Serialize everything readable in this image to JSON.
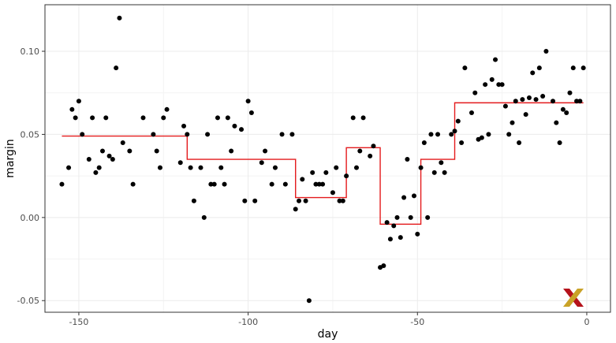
{
  "chart_data": {
    "type": "scatter",
    "xlabel": "day",
    "ylabel": "margin",
    "xlim": [
      -160,
      7
    ],
    "ylim": [
      -0.057,
      0.128
    ],
    "x_ticks": [
      -150,
      -100,
      -50,
      0
    ],
    "x_tick_labels": [
      "-150",
      "-100",
      "-50",
      "0"
    ],
    "y_ticks": [
      -0.05,
      0.0,
      0.05,
      0.1
    ],
    "y_tick_labels": [
      "-0.05",
      "0.00",
      "0.05",
      "0.10"
    ],
    "grid": true,
    "point_color": "#000000",
    "step_color": "#e41a1c",
    "points": [
      [
        -155,
        0.02
      ],
      [
        -153,
        0.03
      ],
      [
        -152,
        0.065
      ],
      [
        -151,
        0.06
      ],
      [
        -150,
        0.07
      ],
      [
        -149,
        0.05
      ],
      [
        -147,
        0.035
      ],
      [
        -146,
        0.06
      ],
      [
        -145,
        0.027
      ],
      [
        -144,
        0.03
      ],
      [
        -143,
        0.04
      ],
      [
        -142,
        0.06
      ],
      [
        -141,
        0.037
      ],
      [
        -140,
        0.035
      ],
      [
        -139,
        0.09
      ],
      [
        -138,
        0.12
      ],
      [
        -137,
        0.045
      ],
      [
        -135,
        0.04
      ],
      [
        -134,
        0.02
      ],
      [
        -131,
        0.06
      ],
      [
        -128,
        0.05
      ],
      [
        -127,
        0.04
      ],
      [
        -126,
        0.03
      ],
      [
        -125,
        0.06
      ],
      [
        -124,
        0.065
      ],
      [
        -120,
        0.033
      ],
      [
        -119,
        0.055
      ],
      [
        -118,
        0.05
      ],
      [
        -117,
        0.03
      ],
      [
        -116,
        0.01
      ],
      [
        -114,
        0.03
      ],
      [
        -113,
        0.0
      ],
      [
        -112,
        0.05
      ],
      [
        -111,
        0.02
      ],
      [
        -110,
        0.02
      ],
      [
        -109,
        0.06
      ],
      [
        -108,
        0.03
      ],
      [
        -107,
        0.02
      ],
      [
        -106,
        0.06
      ],
      [
        -105,
        0.04
      ],
      [
        -104,
        0.055
      ],
      [
        -102,
        0.053
      ],
      [
        -101,
        0.01
      ],
      [
        -100,
        0.07
      ],
      [
        -99,
        0.063
      ],
      [
        -98,
        0.01
      ],
      [
        -96,
        0.033
      ],
      [
        -95,
        0.04
      ],
      [
        -93,
        0.02
      ],
      [
        -92,
        0.03
      ],
      [
        -90,
        0.05
      ],
      [
        -89,
        0.02
      ],
      [
        -87,
        0.05
      ],
      [
        -86,
        0.005
      ],
      [
        -85,
        0.01
      ],
      [
        -84,
        0.023
      ],
      [
        -83,
        0.01
      ],
      [
        -82,
        -0.05
      ],
      [
        -81,
        0.027
      ],
      [
        -80,
        0.02
      ],
      [
        -79,
        0.02
      ],
      [
        -78,
        0.02
      ],
      [
        -77,
        0.027
      ],
      [
        -75,
        0.015
      ],
      [
        -74,
        0.03
      ],
      [
        -73,
        0.01
      ],
      [
        -72,
        0.01
      ],
      [
        -71,
        0.025
      ],
      [
        -69,
        0.06
      ],
      [
        -68,
        0.03
      ],
      [
        -67,
        0.04
      ],
      [
        -66,
        0.06
      ],
      [
        -64,
        0.037
      ],
      [
        -63,
        0.043
      ],
      [
        -61,
        -0.03
      ],
      [
        -60,
        -0.029
      ],
      [
        -59,
        -0.003
      ],
      [
        -58,
        -0.013
      ],
      [
        -57,
        -0.005
      ],
      [
        -56,
        0.0
      ],
      [
        -55,
        -0.012
      ],
      [
        -54,
        0.012
      ],
      [
        -53,
        0.035
      ],
      [
        -52,
        0.0
      ],
      [
        -51,
        0.013
      ],
      [
        -50,
        -0.01
      ],
      [
        -49,
        0.03
      ],
      [
        -48,
        0.045
      ],
      [
        -47,
        0.0
      ],
      [
        -46,
        0.05
      ],
      [
        -45,
        0.027
      ],
      [
        -44,
        0.05
      ],
      [
        -43,
        0.033
      ],
      [
        -42,
        0.027
      ],
      [
        -40,
        0.05
      ],
      [
        -39,
        0.052
      ],
      [
        -38,
        0.058
      ],
      [
        -37,
        0.045
      ],
      [
        -36,
        0.09
      ],
      [
        -34,
        0.063
      ],
      [
        -33,
        0.075
      ],
      [
        -32,
        0.047
      ],
      [
        -31,
        0.048
      ],
      [
        -30,
        0.08
      ],
      [
        -29,
        0.05
      ],
      [
        -28,
        0.083
      ],
      [
        -27,
        0.095
      ],
      [
        -26,
        0.08
      ],
      [
        -25,
        0.08
      ],
      [
        -24,
        0.067
      ],
      [
        -23,
        0.05
      ],
      [
        -22,
        0.057
      ],
      [
        -21,
        0.07
      ],
      [
        -20,
        0.045
      ],
      [
        -19,
        0.071
      ],
      [
        -18,
        0.062
      ],
      [
        -17,
        0.072
      ],
      [
        -16,
        0.087
      ],
      [
        -15,
        0.071
      ],
      [
        -14,
        0.09
      ],
      [
        -13,
        0.073
      ],
      [
        -12,
        0.1
      ],
      [
        -10,
        0.07
      ],
      [
        -9,
        0.057
      ],
      [
        -8,
        0.045
      ],
      [
        -7,
        0.065
      ],
      [
        -6,
        0.063
      ],
      [
        -5,
        0.075
      ],
      [
        -4,
        0.09
      ],
      [
        -3,
        0.07
      ],
      [
        -2,
        0.07
      ],
      [
        -1,
        0.09
      ]
    ],
    "segments": [
      {
        "x_start": -155,
        "x_end": -118,
        "value": 0.049
      },
      {
        "x_start": -118,
        "x_end": -86,
        "value": 0.035
      },
      {
        "x_start": -86,
        "x_end": -71,
        "value": 0.012
      },
      {
        "x_start": -71,
        "x_end": -61,
        "value": 0.042
      },
      {
        "x_start": -61,
        "x_end": -49,
        "value": -0.004
      },
      {
        "x_start": -49,
        "x_end": -39,
        "value": 0.035
      },
      {
        "x_start": -39,
        "x_end": -1,
        "value": 0.069
      }
    ]
  },
  "logo": {
    "name": "x-logo-icon",
    "color_left": "#b5121b",
    "color_right": "#c9a227"
  }
}
